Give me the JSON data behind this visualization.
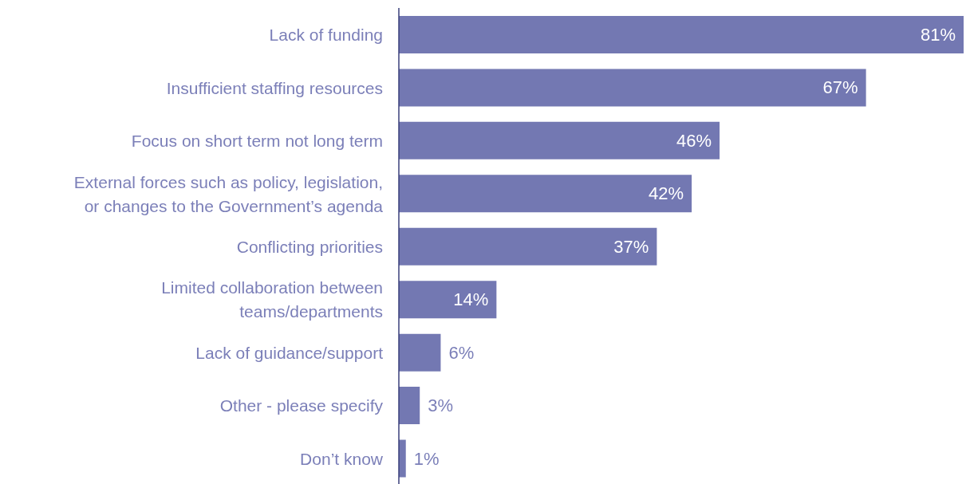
{
  "chart_data": {
    "type": "bar",
    "orientation": "horizontal",
    "categories": [
      "Lack of funding",
      "Insufficient staffing resources",
      "Focus on short term not long term",
      "External forces such as policy, legislation, or changes to the Government’s agenda",
      "Conflicting priorities",
      "Limited collaboration between teams/departments",
      "Lack of guidance/support",
      "Other - please specify",
      "Don’t know"
    ],
    "values": [
      81,
      67,
      46,
      42,
      37,
      14,
      6,
      3,
      1
    ],
    "value_labels": [
      "81%",
      "67%",
      "46%",
      "42%",
      "37%",
      "14%",
      "6%",
      "3%",
      "1%"
    ],
    "color": "#7378b2",
    "grid": false,
    "legend": false
  }
}
